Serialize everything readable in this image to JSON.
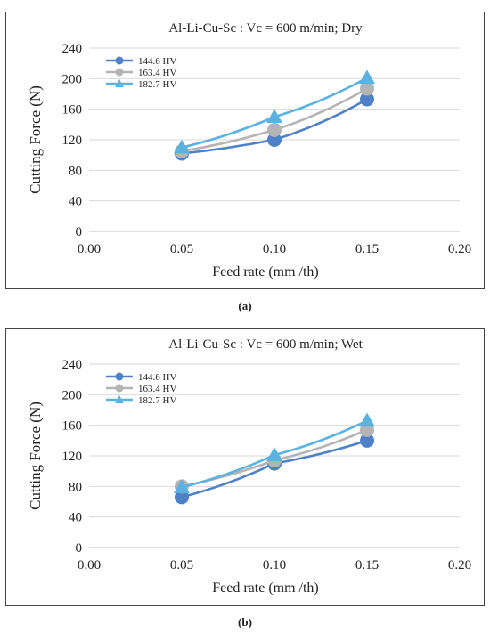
{
  "colors": {
    "series_1": "#4f81c7",
    "series_2": "#b4b4b4",
    "series_3": "#5bb2e0",
    "grid": "#d9d9d9",
    "axis": "#bfbfbf"
  },
  "chart_data": [
    {
      "type": "line",
      "title": "Al-Li-Cu-Sc : Vc = 600 m/min; Dry",
      "xlabel": "Feed rate (mm /th)",
      "ylabel": "Cutting Force (N)",
      "xlim": [
        0,
        0.2
      ],
      "ylim": [
        0,
        240
      ],
      "x_ticks": [
        "0.00",
        "0.05",
        "0.10",
        "0.15",
        "0.20"
      ],
      "y_ticks": [
        "0",
        "40",
        "80",
        "120",
        "160",
        "200",
        "240"
      ],
      "grid": "horizontal",
      "legend_position": "top-left",
      "x": [
        0.05,
        0.1,
        0.15
      ],
      "series": [
        {
          "name": "144.6 HV",
          "marker": "circle",
          "values": [
            102,
            120,
            173
          ]
        },
        {
          "name": "163.4 HV",
          "marker": "circle",
          "values": [
            105,
            133,
            187
          ]
        },
        {
          "name": "182.7 HV",
          "marker": "triangle",
          "values": [
            110,
            150,
            201
          ]
        }
      ],
      "caption": "(a)"
    },
    {
      "type": "line",
      "title": "Al-Li-Cu-Sc : Vc = 600 m/min; Wet",
      "xlabel": "Feed rate (mm /th)",
      "ylabel": "Cutting Force (N)",
      "xlim": [
        0,
        0.2
      ],
      "ylim": [
        0,
        240
      ],
      "x_ticks": [
        "0.00",
        "0.05",
        "0.10",
        "0.15",
        "0.20"
      ],
      "y_ticks": [
        "0",
        "40",
        "80",
        "120",
        "160",
        "200",
        "240"
      ],
      "grid": "horizontal",
      "legend_position": "top-left",
      "x": [
        0.05,
        0.1,
        0.15
      ],
      "series": [
        {
          "name": "144.6 HV",
          "marker": "circle",
          "values": [
            66,
            110,
            140
          ]
        },
        {
          "name": "163.4 HV",
          "marker": "circle",
          "values": [
            80,
            114,
            154
          ]
        },
        {
          "name": "182.7 HV",
          "marker": "triangle",
          "values": [
            79,
            121,
            166
          ]
        }
      ],
      "caption": "(b)"
    }
  ]
}
